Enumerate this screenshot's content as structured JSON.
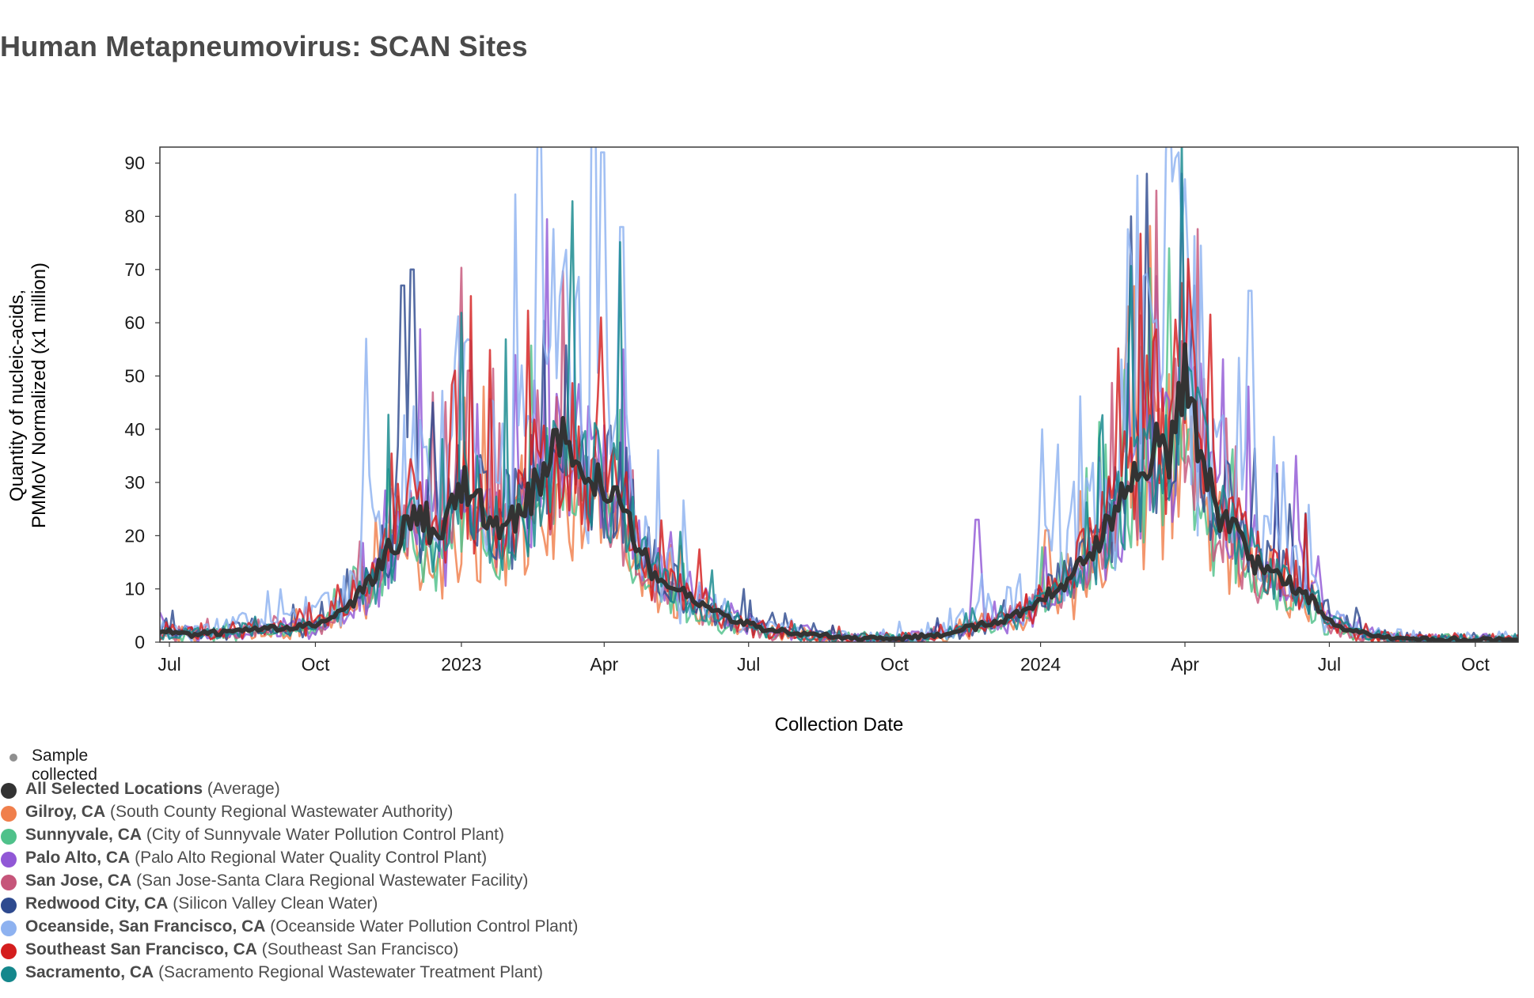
{
  "page": {
    "title": "Human Metapneumovirus: SCAN Sites"
  },
  "chart_data": {
    "type": "line",
    "title": "Human Metapneumovirus: SCAN Sites",
    "xlabel": "Collection Date",
    "ylabel_line1": "Quantity of nucleic-acids,",
    "ylabel_line2": "PMMoV Normalized (x1 million)",
    "ylim": [
      0,
      93
    ],
    "xlim": [
      "2022-06-25",
      "2024-10-28"
    ],
    "y_ticks": [
      0,
      10,
      20,
      30,
      40,
      50,
      60,
      70,
      80,
      90
    ],
    "x_ticks": [
      {
        "date": "2022-07-01",
        "label": "Jul"
      },
      {
        "date": "2022-10-01",
        "label": "Oct"
      },
      {
        "date": "2023-01-01",
        "label": "2023"
      },
      {
        "date": "2023-04-01",
        "label": "Apr"
      },
      {
        "date": "2023-07-01",
        "label": "Jul"
      },
      {
        "date": "2023-10-01",
        "label": "Oct"
      },
      {
        "date": "2024-01-01",
        "label": "2024"
      },
      {
        "date": "2024-04-01",
        "label": "Apr"
      },
      {
        "date": "2024-07-01",
        "label": "Jul"
      },
      {
        "date": "2024-10-01",
        "label": "Oct"
      }
    ],
    "average_series": {
      "name": "All Selected Locations",
      "color": "#333333",
      "points": [
        [
          "2022-06-25",
          2
        ],
        [
          "2022-07-15",
          1.5
        ],
        [
          "2022-08-10",
          2
        ],
        [
          "2022-09-01",
          2.5
        ],
        [
          "2022-10-01",
          3
        ],
        [
          "2022-10-20",
          6
        ],
        [
          "2022-11-05",
          12
        ],
        [
          "2022-11-20",
          19
        ],
        [
          "2022-12-01",
          24
        ],
        [
          "2022-12-10",
          23
        ],
        [
          "2022-12-18",
          18
        ],
        [
          "2022-12-25",
          24
        ],
        [
          "2023-01-05",
          30
        ],
        [
          "2023-01-15",
          24
        ],
        [
          "2023-01-25",
          21
        ],
        [
          "2023-02-05",
          24
        ],
        [
          "2023-02-15",
          28
        ],
        [
          "2023-02-25",
          33
        ],
        [
          "2023-03-05",
          38
        ],
        [
          "2023-03-15",
          34
        ],
        [
          "2023-03-25",
          32
        ],
        [
          "2023-04-01",
          31
        ],
        [
          "2023-04-10",
          28
        ],
        [
          "2023-04-20",
          20
        ],
        [
          "2023-05-01",
          13
        ],
        [
          "2023-05-15",
          10
        ],
        [
          "2023-06-01",
          7
        ],
        [
          "2023-06-20",
          4
        ],
        [
          "2023-07-10",
          2.5
        ],
        [
          "2023-08-01",
          1.5
        ],
        [
          "2023-09-01",
          0.8
        ],
        [
          "2023-10-01",
          0.6
        ],
        [
          "2023-11-01",
          1.5
        ],
        [
          "2023-11-20",
          3
        ],
        [
          "2023-12-10",
          4
        ],
        [
          "2024-01-01",
          8
        ],
        [
          "2024-01-20",
          12
        ],
        [
          "2024-02-05",
          18
        ],
        [
          "2024-02-20",
          26
        ],
        [
          "2024-03-05",
          33
        ],
        [
          "2024-03-15",
          40
        ],
        [
          "2024-03-22",
          34
        ],
        [
          "2024-04-01",
          52
        ],
        [
          "2024-04-08",
          40
        ],
        [
          "2024-04-20",
          25
        ],
        [
          "2024-05-05",
          20
        ],
        [
          "2024-05-20",
          13
        ],
        [
          "2024-06-05",
          12
        ],
        [
          "2024-06-20",
          8
        ],
        [
          "2024-07-05",
          3
        ],
        [
          "2024-08-01",
          1
        ],
        [
          "2024-09-01",
          0.5
        ],
        [
          "2024-10-01",
          0.5
        ],
        [
          "2024-10-28",
          0.5
        ]
      ]
    },
    "series": [
      {
        "name": "Gilroy, CA",
        "desc": "(South County Regional Wastewater Authority)",
        "color": "#f07f4c",
        "weight": 0.8,
        "noise": 0.7,
        "shift": 0,
        "spikes": [
          [
            "2023-03-25",
            27
          ],
          [
            "2024-01-05",
            21
          ],
          [
            "2024-04-01",
            44
          ]
        ]
      },
      {
        "name": "Sunnyvale, CA",
        "desc": "(City of Sunnyvale Water Pollution Control Plant)",
        "color": "#4fc18a",
        "weight": 0.8,
        "noise": 0.5,
        "shift": 3,
        "spikes": [
          [
            "2023-03-20",
            35
          ],
          [
            "2024-03-22",
            74
          ]
        ]
      },
      {
        "name": "Palo Alto, CA",
        "desc": "(Palo Alto Regional Water Quality Control Plant)",
        "color": "#9158d6",
        "weight": 1.0,
        "noise": 0.6,
        "shift": -4,
        "spikes": [
          [
            "2023-11-22",
            23
          ],
          [
            "2024-03-30",
            88
          ],
          [
            "2024-06-10",
            35
          ]
        ]
      },
      {
        "name": "San Jose, CA",
        "desc": "(San Jose-Santa Clara Regional Wastewater Facility)",
        "color": "#c6557a",
        "weight": 0.9,
        "noise": 0.5,
        "shift": 2,
        "spikes": [
          [
            "2023-01-06",
            51
          ]
        ]
      },
      {
        "name": "Redwood City, CA",
        "desc": "(Silicon Valley Clean Water)",
        "color": "#2e4a8f",
        "weight": 1.05,
        "noise": 0.6,
        "shift": -2,
        "spikes": [
          [
            "2022-12-01",
            70
          ],
          [
            "2022-11-25",
            67
          ],
          [
            "2024-03-08",
            88
          ],
          [
            "2024-02-27",
            80
          ]
        ]
      },
      {
        "name": "Oceanside, San Francisco, CA",
        "desc": "(Oceanside Water Pollution Control Plant)",
        "color": "#8eb2f0",
        "weight": 1.35,
        "noise": 0.9,
        "shift": 5,
        "spikes": [
          [
            "2022-11-02",
            57
          ],
          [
            "2023-03-05",
            65
          ],
          [
            "2023-03-31",
            92
          ],
          [
            "2023-04-12",
            78
          ],
          [
            "2024-01-02",
            40
          ],
          [
            "2024-03-20",
            92
          ],
          [
            "2024-03-28",
            92
          ],
          [
            "2024-05-12",
            66
          ]
        ]
      },
      {
        "name": "Southeast San Francisco, CA",
        "desc": "(Southeast San Francisco)",
        "color": "#d41e1e",
        "weight": 1.05,
        "noise": 0.6,
        "shift": 1,
        "spikes": [
          [
            "2022-12-28",
            51
          ],
          [
            "2023-03-30",
            61
          ],
          [
            "2024-04-03",
            72
          ]
        ]
      },
      {
        "name": "Sacramento, CA",
        "desc": "(Sacramento Regional Wastewater Treatment Plant)",
        "color": "#14878c",
        "weight": 0.95,
        "noise": 0.5,
        "shift": -1,
        "spikes": [
          [
            "2023-03-10",
            57
          ]
        ]
      }
    ]
  },
  "legend": {
    "sample_label": "Sample collected",
    "sample_color": "#8f8f8f",
    "items": [
      {
        "name": "All Selected Locations",
        "desc": "(Average)",
        "color": "#333333"
      },
      {
        "name": "Gilroy, CA",
        "desc": "(South County Regional Wastewater Authority)",
        "color": "#f07f4c"
      },
      {
        "name": "Sunnyvale, CA",
        "desc": "(City of Sunnyvale Water Pollution Control Plant)",
        "color": "#4fc18a"
      },
      {
        "name": "Palo Alto, CA",
        "desc": "(Palo Alto Regional Water Quality Control Plant)",
        "color": "#9158d6"
      },
      {
        "name": "San Jose, CA",
        "desc": "(San Jose-Santa Clara Regional Wastewater Facility)",
        "color": "#c6557a"
      },
      {
        "name": "Redwood City, CA",
        "desc": "(Silicon Valley Clean Water)",
        "color": "#2e4a8f"
      },
      {
        "name": "Oceanside, San Francisco, CA",
        "desc": "(Oceanside Water Pollution Control Plant)",
        "color": "#8eb2f0"
      },
      {
        "name": "Southeast San Francisco, CA",
        "desc": "(Southeast San Francisco)",
        "color": "#d41e1e"
      },
      {
        "name": "Sacramento, CA",
        "desc": "(Sacramento Regional Wastewater Treatment Plant)",
        "color": "#14878c"
      }
    ]
  }
}
